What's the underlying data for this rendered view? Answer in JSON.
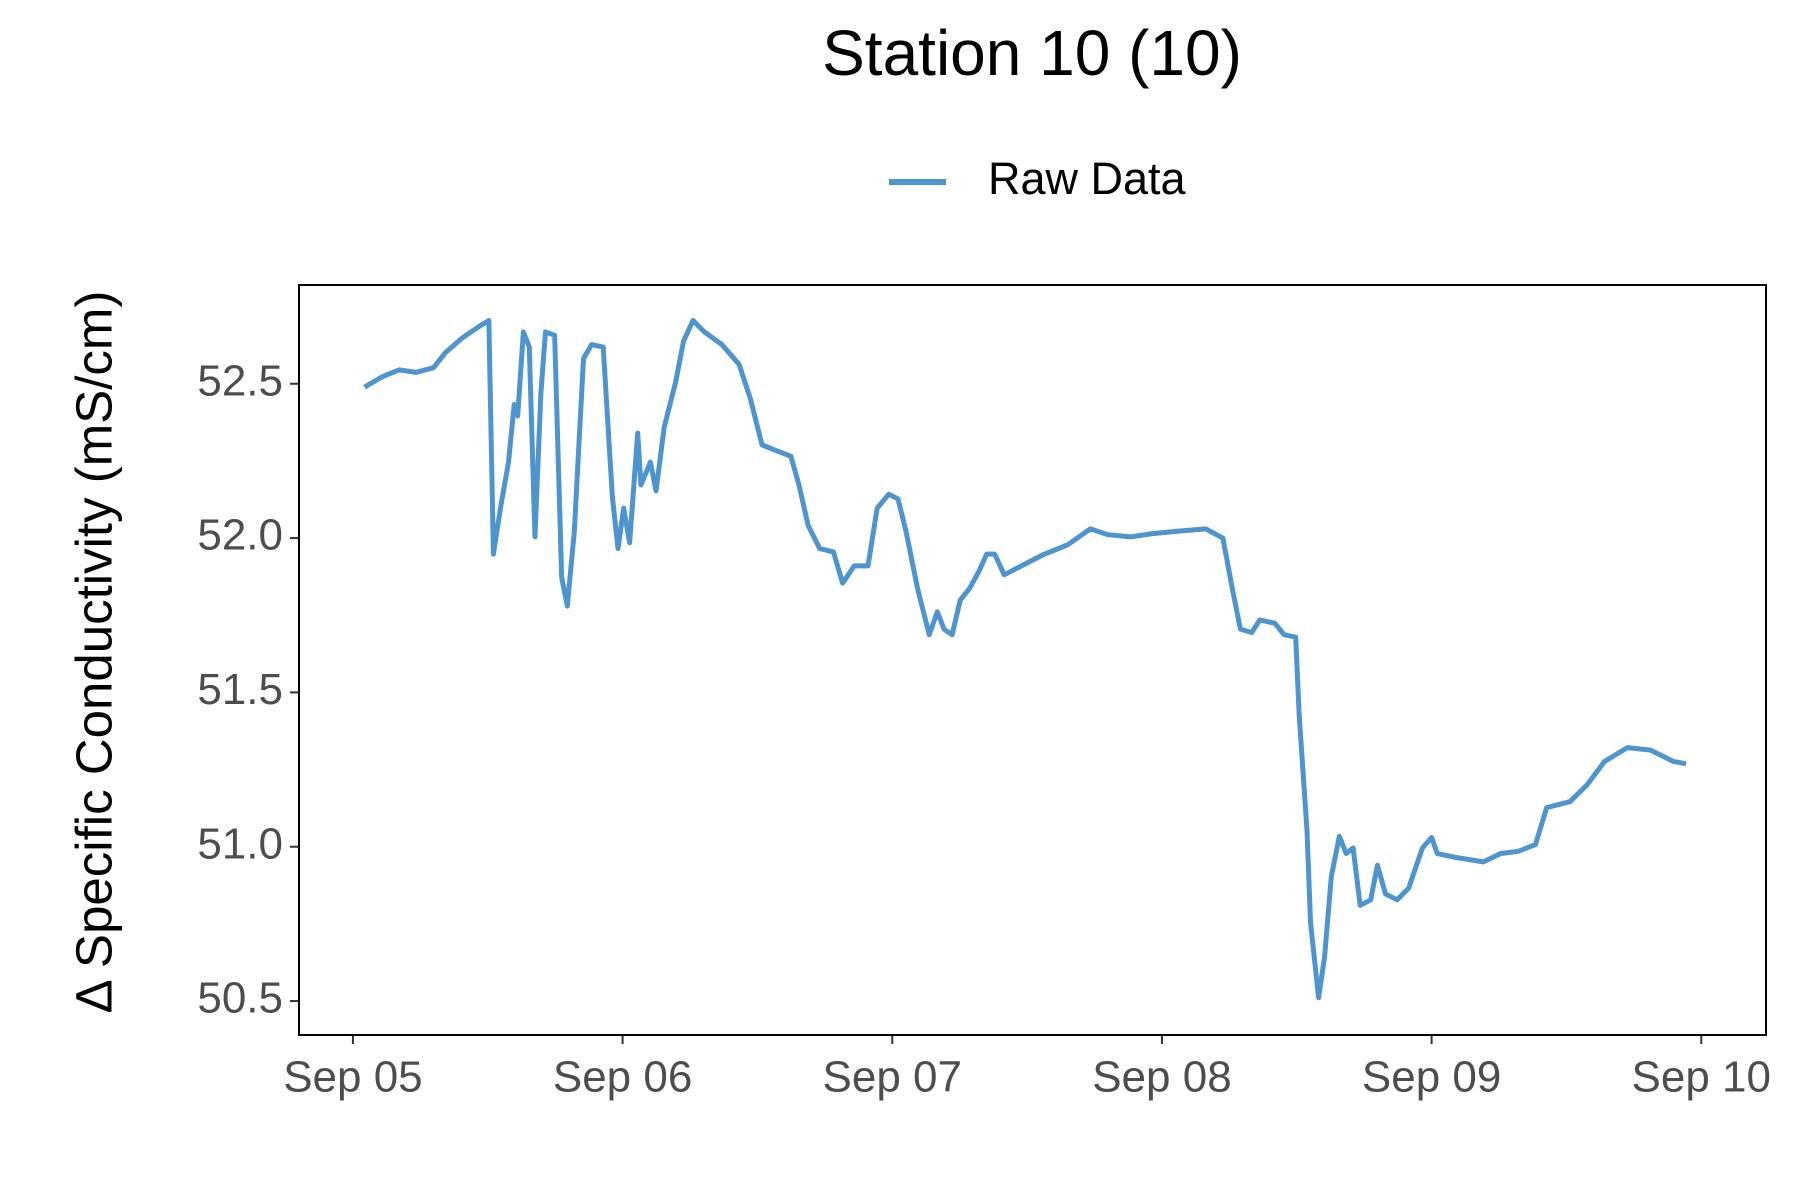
{
  "chart_data": {
    "type": "line",
    "title": "Station 10 (10)",
    "y_label": "Δ Specific Conductivity (mS/cm)",
    "legend": "top",
    "grid": false,
    "xlim": [
      4.8,
      10.24
    ],
    "xticks": [
      {
        "value": 5,
        "label": "Sep 05"
      },
      {
        "value": 6,
        "label": "Sep 06"
      },
      {
        "value": 7,
        "label": "Sep 07"
      },
      {
        "value": 8,
        "label": "Sep 08"
      },
      {
        "value": 9,
        "label": "Sep 09"
      },
      {
        "value": 10,
        "label": "Sep 10"
      }
    ],
    "ylim": [
      50.39,
      52.82
    ],
    "yticks": [
      50.5,
      {
        "value": 51,
        "label": "51.0"
      },
      51.5,
      {
        "value": 52,
        "label": "52.0"
      },
      52.5
    ],
    "x": [
      5.043,
      5.107,
      5.171,
      5.235,
      5.299,
      5.342,
      5.406,
      5.47,
      5.504,
      5.521,
      5.547,
      5.577,
      5.598,
      5.611,
      5.632,
      5.654,
      5.675,
      5.697,
      5.714,
      5.748,
      5.774,
      5.795,
      5.821,
      5.855,
      5.885,
      5.928,
      5.962,
      5.983,
      6.004,
      6.026,
      6.056,
      6.068,
      6.103,
      6.124,
      6.154,
      6.197,
      6.226,
      6.261,
      6.303,
      6.368,
      6.432,
      6.474,
      6.517,
      6.568,
      6.624,
      6.654,
      6.688,
      6.731,
      6.782,
      6.816,
      6.859,
      6.91,
      6.944,
      6.987,
      7.021,
      7.051,
      7.094,
      7.137,
      7.167,
      7.192,
      7.222,
      7.252,
      7.286,
      7.321,
      7.35,
      7.38,
      7.415,
      7.479,
      7.564,
      7.65,
      7.735,
      7.799,
      7.885,
      7.97,
      8.056,
      8.162,
      8.226,
      8.261,
      8.291,
      8.333,
      8.363,
      8.419,
      8.453,
      8.496,
      8.509,
      8.538,
      8.551,
      8.581,
      8.603,
      8.628,
      8.658,
      8.683,
      8.709,
      8.735,
      8.774,
      8.799,
      8.829,
      8.872,
      8.915,
      8.966,
      9.0,
      9.021,
      9.085,
      9.192,
      9.256,
      9.321,
      9.385,
      9.427,
      9.513,
      9.577,
      9.641,
      9.726,
      9.812,
      9.897,
      9.944
    ],
    "series": [
      {
        "name": "Raw Data",
        "color": "#4e94ce",
        "values": [
          52.489,
          52.522,
          52.545,
          52.537,
          52.552,
          52.6,
          52.649,
          52.687,
          52.705,
          51.948,
          52.097,
          52.246,
          52.433,
          52.396,
          52.668,
          52.619,
          52.004,
          52.47,
          52.668,
          52.657,
          51.873,
          51.78,
          52.022,
          52.582,
          52.627,
          52.619,
          52.134,
          51.966,
          52.097,
          51.985,
          52.34,
          52.172,
          52.246,
          52.153,
          52.358,
          52.507,
          52.638,
          52.705,
          52.668,
          52.627,
          52.563,
          52.451,
          52.302,
          52.284,
          52.265,
          52.172,
          52.041,
          51.966,
          51.955,
          51.854,
          51.91,
          51.91,
          52.097,
          52.142,
          52.127,
          52.022,
          51.836,
          51.687,
          51.761,
          51.705,
          51.687,
          51.799,
          51.836,
          51.892,
          51.948,
          51.948,
          51.881,
          51.91,
          51.948,
          51.978,
          52.03,
          52.011,
          52.004,
          52.015,
          52.022,
          52.03,
          52.0,
          51.836,
          51.705,
          51.694,
          51.735,
          51.724,
          51.687,
          51.679,
          51.425,
          51.052,
          50.754,
          50.511,
          50.642,
          50.903,
          51.034,
          50.978,
          50.996,
          50.81,
          50.828,
          50.94,
          50.847,
          50.828,
          50.866,
          50.996,
          51.03,
          50.978,
          50.966,
          50.951,
          50.978,
          50.985,
          51.007,
          51.127,
          51.146,
          51.201,
          51.276,
          51.321,
          51.313,
          51.276,
          51.269
        ]
      }
    ]
  }
}
